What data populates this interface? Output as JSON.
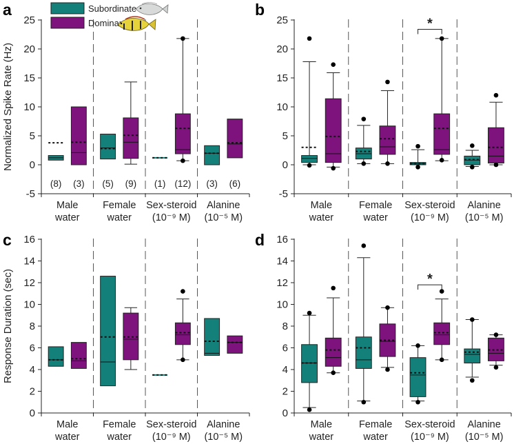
{
  "colors": {
    "subordinate": "#138079",
    "dominant": "#7e137e",
    "axis": "#222222"
  },
  "legend": {
    "subordinate": "Subordinate",
    "dominant": "Dominant",
    "icons": [
      "subordinate-fish-icon",
      "dominant-fish-icon"
    ]
  },
  "chart_data": [
    {
      "panel": "a",
      "type": "boxplot",
      "ylabel": "Normalized Spike Rate (Hz)",
      "ylim": [
        -5,
        25
      ],
      "yticks": [
        -5,
        0,
        5,
        10,
        15,
        20,
        25
      ],
      "yticklabels": [
        "-5",
        "0",
        "5",
        "10",
        "15",
        "20",
        "25"
      ],
      "categories": [
        {
          "line1": "Male",
          "line2": "water"
        },
        {
          "line1": "Female",
          "line2": "water"
        },
        {
          "line1": "Sex-steroid",
          "line2": "(10⁻⁹ M)"
        },
        {
          "line1": "Alanine",
          "line2": "(10⁻⁵ M)"
        }
      ],
      "n_labels": [
        "(8)",
        "(3)",
        "(5)",
        "(9)",
        "(1)",
        "(12)",
        "(3)",
        "(6)"
      ],
      "series": [
        {
          "name": "Subordinate",
          "boxes": [
            {
              "q1": 0.8,
              "median": 1.2,
              "q3": 1.6,
              "mean": 3.8
            },
            {
              "q1": 1.0,
              "median": 2.9,
              "q3": 5.3,
              "mean": 2.8
            },
            {
              "q1": 1.2,
              "median": 1.2,
              "q3": 1.2,
              "mean": 1.2
            },
            {
              "q1": 0.0,
              "median": 2.0,
              "q3": 3.3,
              "mean": 2.0
            }
          ]
        },
        {
          "name": "Dominant",
          "boxes": [
            {
              "q1": 0.0,
              "median": 2.1,
              "q3": 10.0,
              "mean": 3.9
            },
            {
              "q1": 1.1,
              "median": 3.9,
              "q3": 8.1,
              "mean": 5.1,
              "whisker_low": 0.1,
              "whisker_high": 14.3
            },
            {
              "q1": 1.9,
              "median": 2.6,
              "q3": 8.8,
              "mean": 6.3,
              "whisker_low": 0.7,
              "whisker_high": 21.8,
              "outliers": [
                21.8,
                0.7
              ]
            },
            {
              "q1": 1.2,
              "median": 3.6,
              "q3": 7.9,
              "mean": 3.8
            }
          ]
        }
      ]
    },
    {
      "panel": "b",
      "type": "boxplot",
      "ylabel": "",
      "ylim": [
        -5,
        25
      ],
      "yticks": [
        -5,
        0,
        5,
        10,
        15,
        20,
        25
      ],
      "yticklabels": [
        "-5",
        "0",
        "5",
        "10",
        "15",
        "20",
        "25"
      ],
      "categories": [
        {
          "line1": "Male",
          "line2": "water"
        },
        {
          "line1": "Female",
          "line2": "water"
        },
        {
          "line1": "Sex-steroid",
          "line2": "(10⁻⁹ M)"
        },
        {
          "line1": "Alanine",
          "line2": "(10⁻⁵ M)"
        }
      ],
      "significance": {
        "label": "*",
        "group": 2,
        "y": 23.4
      },
      "series": [
        {
          "name": "Subordinate",
          "boxes": [
            {
              "q1": 0.4,
              "median": 1.1,
              "q3": 1.6,
              "mean": 3.0,
              "whisker_low": 0.0,
              "whisker_high": 17.8,
              "outliers": [
                21.8,
                -0.1
              ]
            },
            {
              "q1": 1.0,
              "median": 1.9,
              "q3": 2.9,
              "mean": 2.3,
              "whisker_low": 0.2,
              "whisker_high": 6.8,
              "outliers": [
                7.9,
                0.2
              ]
            },
            {
              "q1": 0.0,
              "median": 0.2,
              "q3": 0.4,
              "mean": 0.2,
              "whisker_low": 0.0,
              "whisker_high": 2.6,
              "outliers": [
                3.2,
                -0.4
              ]
            },
            {
              "q1": 0.0,
              "median": 0.8,
              "q3": 1.5,
              "mean": 0.9,
              "whisker_low": -0.3,
              "whisker_high": 2.5,
              "outliers": [
                3.3,
                -0.4
              ]
            }
          ]
        },
        {
          "name": "Dominant",
          "boxes": [
            {
              "q1": 0.4,
              "median": 1.9,
              "q3": 11.4,
              "mean": 4.9,
              "whisker_low": -0.4,
              "whisker_high": 15.9,
              "outliers": [
                17.3,
                -0.6
              ]
            },
            {
              "q1": 1.8,
              "median": 3.1,
              "q3": 6.7,
              "mean": 4.5,
              "whisker_low": 0.2,
              "whisker_high": 12.8,
              "outliers": [
                14.3,
                0.2
              ]
            },
            {
              "q1": 1.8,
              "median": 2.6,
              "q3": 8.8,
              "mean": 6.3,
              "whisker_low": 0.7,
              "whisker_high": 21.8,
              "outliers": [
                21.8,
                0.8
              ]
            },
            {
              "q1": 0.3,
              "median": 1.5,
              "q3": 6.4,
              "mean": 3.0,
              "whisker_low": 0.0,
              "whisker_high": 10.8,
              "outliers": [
                12.0,
                0.0
              ]
            }
          ]
        }
      ]
    },
    {
      "panel": "c",
      "type": "boxplot",
      "ylabel": "Response Duration (sec)",
      "ylim": [
        0,
        16
      ],
      "yticks": [
        0,
        2,
        4,
        6,
        8,
        10,
        12,
        14,
        16
      ],
      "yticklabels": [
        "0",
        "2",
        "4",
        "6",
        "8",
        "10",
        "12",
        "14",
        "16"
      ],
      "categories": [
        {
          "line1": "Male",
          "line2": "water"
        },
        {
          "line1": "Female",
          "line2": "water"
        },
        {
          "line1": "Sex-steroid",
          "line2": "(10⁻⁹ M)"
        },
        {
          "line1": "Alanine",
          "line2": "(10⁻⁵ M)"
        }
      ],
      "series": [
        {
          "name": "Subordinate",
          "boxes": [
            {
              "q1": 4.3,
              "median": 4.9,
              "q3": 6.1,
              "mean": 4.9
            },
            {
              "q1": 2.5,
              "median": 4.7,
              "q3": 12.6,
              "mean": 7.0
            },
            {
              "q1": 3.5,
              "median": 3.5,
              "q3": 3.5,
              "mean": 3.5
            },
            {
              "q1": 5.3,
              "median": 5.5,
              "q3": 8.7,
              "mean": 6.6
            }
          ]
        },
        {
          "name": "Dominant",
          "boxes": [
            {
              "q1": 4.1,
              "median": 4.8,
              "q3": 6.5,
              "mean": 5.0
            },
            {
              "q1": 4.9,
              "median": 6.8,
              "q3": 9.2,
              "mean": 7.0,
              "whisker_low": 4.0,
              "whisker_high": 9.7
            },
            {
              "q1": 6.3,
              "median": 7.2,
              "q3": 8.3,
              "mean": 7.4,
              "whisker_low": 4.9,
              "whisker_high": 10.5,
              "outliers": [
                11.2,
                4.9
              ]
            },
            {
              "q1": 5.5,
              "median": 6.5,
              "q3": 7.1,
              "mean": 6.5
            }
          ]
        }
      ]
    },
    {
      "panel": "d",
      "type": "boxplot",
      "ylabel": "",
      "ylim": [
        0,
        16
      ],
      "yticks": [
        0,
        2,
        4,
        6,
        8,
        10,
        12,
        14,
        16
      ],
      "yticklabels": [
        "0",
        "2",
        "4",
        "6",
        "8",
        "10",
        "12",
        "14",
        "16"
      ],
      "categories": [
        {
          "line1": "Male",
          "line2": "water"
        },
        {
          "line1": "Female",
          "line2": "water"
        },
        {
          "line1": "Sex-steroid",
          "line2": "(10⁻⁹ M)"
        },
        {
          "line1": "Alanine",
          "line2": "(10⁻⁵ M)"
        }
      ],
      "significance": {
        "label": "*",
        "group": 2,
        "y": 11.8
      },
      "series": [
        {
          "name": "Subordinate",
          "boxes": [
            {
              "q1": 2.8,
              "median": 4.6,
              "q3": 6.3,
              "mean": 4.6,
              "whisker_low": 0.5,
              "whisker_high": 9.0,
              "outliers": [
                9.2,
                0.3
              ]
            },
            {
              "q1": 4.1,
              "median": 4.9,
              "q3": 7.0,
              "mean": 6.0,
              "whisker_low": 1.1,
              "whisker_high": 14.3,
              "outliers": [
                15.4,
                1.0
              ]
            },
            {
              "q1": 1.5,
              "median": 3.5,
              "q3": 5.1,
              "mean": 3.7,
              "whisker_low": 1.1,
              "whisker_high": 6.2,
              "outliers": [
                6.2,
                1.0
              ]
            },
            {
              "q1": 4.6,
              "median": 5.4,
              "q3": 5.9,
              "mean": 5.6,
              "whisker_low": 3.3,
              "whisker_high": 8.6,
              "outliers": [
                8.6,
                3.0
              ]
            }
          ]
        },
        {
          "name": "Dominant",
          "boxes": [
            {
              "q1": 4.3,
              "median": 5.1,
              "q3": 6.9,
              "mean": 5.8,
              "whisker_low": 3.7,
              "whisker_high": 10.6,
              "outliers": [
                11.5,
                3.7
              ]
            },
            {
              "q1": 5.2,
              "median": 6.6,
              "q3": 8.2,
              "mean": 6.7,
              "whisker_low": 4.2,
              "whisker_high": 9.7,
              "outliers": [
                9.7,
                4.0
              ]
            },
            {
              "q1": 6.3,
              "median": 7.2,
              "q3": 8.3,
              "mean": 7.4,
              "whisker_low": 4.9,
              "whisker_high": 10.5,
              "outliers": [
                11.2,
                4.9
              ]
            },
            {
              "q1": 4.8,
              "median": 5.5,
              "q3": 6.9,
              "mean": 5.8,
              "whisker_low": 4.4,
              "whisker_high": 7.2,
              "outliers": [
                7.2,
                4.2
              ]
            }
          ]
        }
      ]
    }
  ]
}
